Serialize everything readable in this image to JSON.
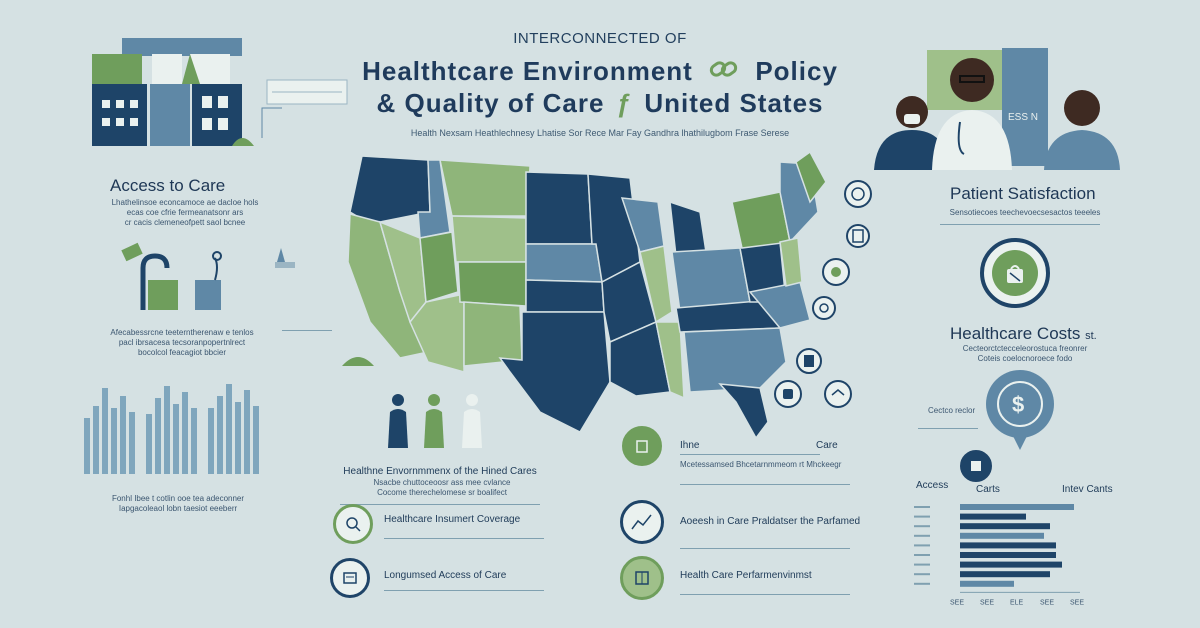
{
  "header": {
    "kicker": "INTERCONNECTED OF",
    "title_line1": "Healthtcare Environment",
    "title_line1_tail": "Policy",
    "title_line2": "& Quality of Care",
    "title_line2_tail": "United States",
    "subline": "Health Nexsam Heathlechnesy Lhatise Sor Rece Mar Fay Gandhra lhathilugbom Frase Serese"
  },
  "left": {
    "access_title": "Access to Care",
    "access_text1": "Lhathelinsoe econcamoce ae dacloe hols",
    "access_text2": "ecas coe cfrie fermeanatsonr ars",
    "access_text3": "cr cacis clemeneofpett saol bcnee",
    "mid_text1": "Afecabessrcne teeterntherenaw e tenlos",
    "mid_text2": "pacl ibrsacesa tecsoranpopertnlrect",
    "mid_text3": "bocolcol feacagiot bbcier",
    "bottom_text1": "Fonhl Ibee t cotlin ooe tea adeconner",
    "bottom_text2": "Iapgacoleaol lobn taesiot eeeberr"
  },
  "center": {
    "caption_title": "Healthne Envornmmenx of the Hined Cares",
    "caption_text1": "Nsacbe chuttoceoosr ass mee cvlance",
    "caption_text2": "Cocome therechelomese sr boalifect",
    "coverage_label": "Healthcare Insumert Coverage",
    "access_label": "Longumsed Access of Care",
    "right_top_label_a": "Ihne",
    "right_top_label_b": "Care",
    "right_top_text": "Mcetessamsed Bhcetarnmmeom rt Mhckeegr",
    "right_mid_label": "Aoeesh in Care Praldatser the Parfamed",
    "right_bottom_label": "Health Care Perfarmenvinmst"
  },
  "right": {
    "satisfaction_title": "Patient Satisfaction",
    "satisfaction_text": "Sensotiecoes teechevoecsesactos teeeles",
    "costs_title": "Healthcare Costs",
    "costs_suffix": "st.",
    "costs_text1": "Cecteorctctecceleorostuca freonrer",
    "costs_text2": "Coteis coelocnoroece fodo",
    "side_note": "Cectco reclor",
    "sign_label": "ESS N",
    "bar_chart_legend_a": "Access",
    "bar_chart_legend_b": "Carts",
    "bar_chart_legend_c": "Intev Cants",
    "axis_ticks": [
      "SEE",
      "SEE",
      "ELE",
      "SEE",
      "SEE"
    ]
  },
  "colors": {
    "navy": "#1e4468",
    "green": "#6f9e5c",
    "light_green": "#9fc08a",
    "steel": "#5f88a6",
    "bg": "#d5e1e3"
  },
  "chart_data": {
    "type": "bar",
    "orientation": "horizontal",
    "categories": [
      "",
      "",
      "",
      "",
      "",
      "",
      "",
      "",
      ""
    ],
    "values": [
      0.95,
      0.55,
      0.75,
      0.7,
      0.8,
      0.8,
      0.85,
      0.75,
      0.45
    ],
    "xlim": [
      0,
      1
    ]
  }
}
